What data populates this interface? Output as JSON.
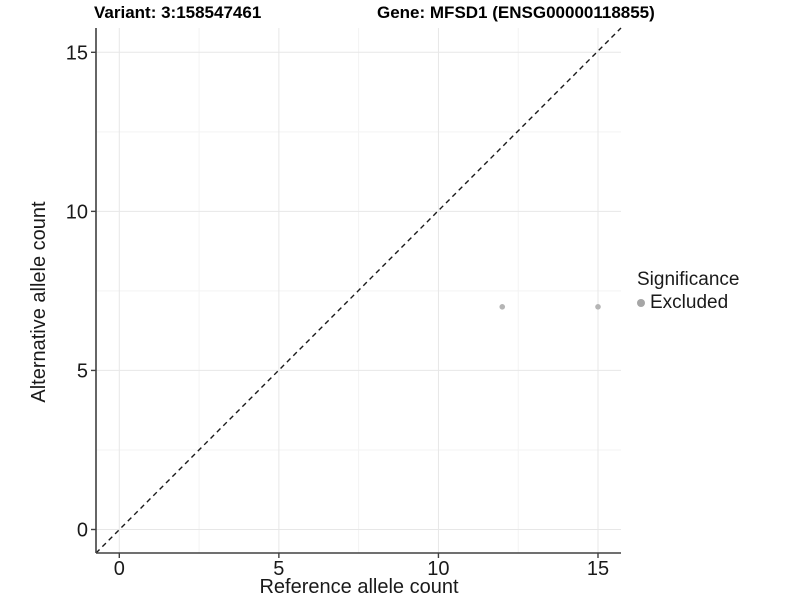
{
  "colors": {
    "axis_line": "#404040",
    "grid_major": "#e7e7e7",
    "grid_minor": "#f3f3f3",
    "axis_text": "#1a1a1a",
    "dashed_line": "#1a1a1a",
    "point": "#b5b5b5",
    "legend_point": "#a6a6a6",
    "title_text": "#000000"
  },
  "chart_data": {
    "type": "scatter",
    "titles": [
      "Variant: 3:158547461",
      "Gene: MFSD1 (ENSG00000118855)"
    ],
    "xlabel": "Reference allele count",
    "ylabel": "Alternative allele count",
    "x_ticks": [
      0,
      5,
      10,
      15
    ],
    "y_ticks": [
      0,
      5,
      10,
      15
    ],
    "x_minor_ticks": [
      2.5,
      7.5,
      12.5
    ],
    "y_minor_ticks": [
      2.5,
      7.5,
      12.5
    ],
    "xlim": [
      -0.75,
      15.75
    ],
    "ylim": [
      -0.75,
      15.75
    ],
    "grid": "major+minor",
    "reference_line": {
      "type": "identity",
      "slope": 1,
      "intercept": 0,
      "style": "dashed"
    },
    "series": [
      {
        "name": "Excluded",
        "color": "#b5b5b5",
        "points": [
          {
            "x": 12,
            "y": 7
          },
          {
            "x": 15,
            "y": 7
          }
        ]
      }
    ],
    "legend": {
      "title": "Significance",
      "position": "right",
      "items": [
        {
          "label": "Excluded",
          "color": "#a6a6a6"
        }
      ]
    }
  }
}
